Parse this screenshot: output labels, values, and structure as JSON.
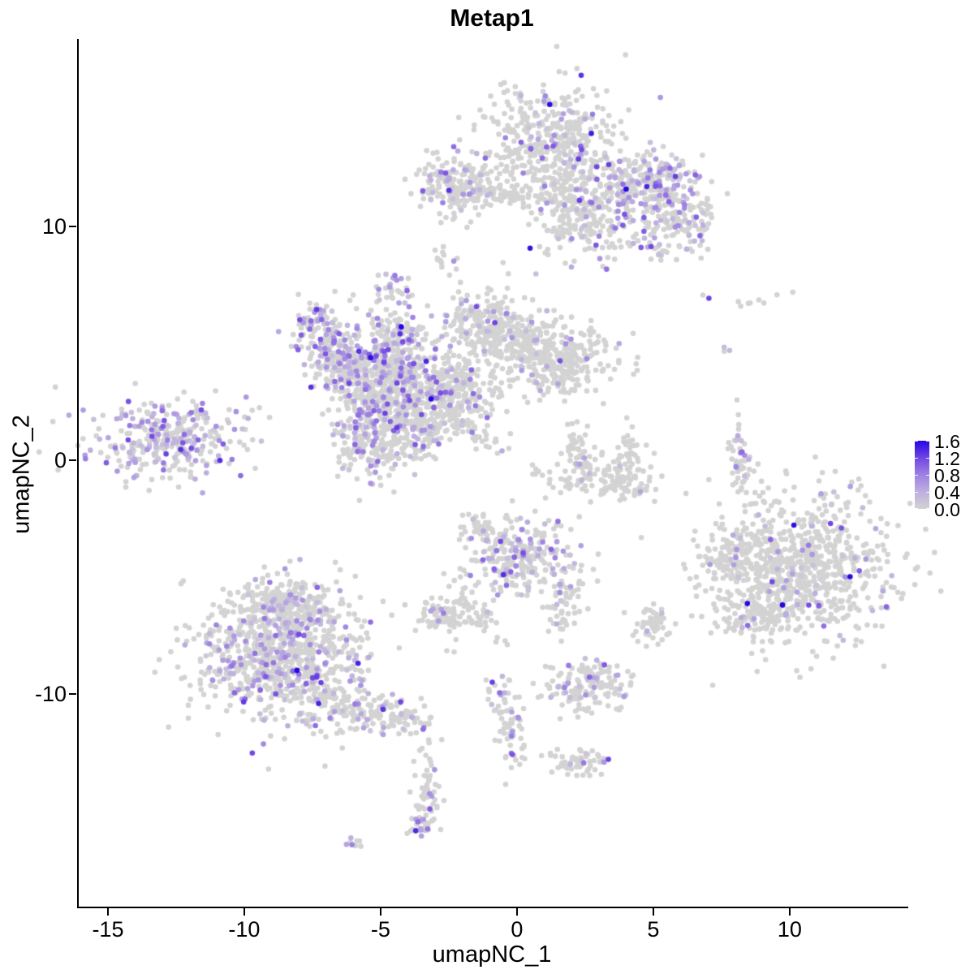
{
  "title": "Metap1",
  "x_axis": {
    "label": "umapNC_1",
    "ticks": [
      -15,
      -10,
      -5,
      0,
      5,
      10
    ],
    "range": [
      -16.13,
      14.29
    ]
  },
  "y_axis": {
    "label": "umapNC_2",
    "ticks": [
      10,
      0,
      -10
    ],
    "range": [
      -19.1,
      18.02
    ]
  },
  "legend": {
    "tick_labels": [
      "1.6",
      "1.2",
      "0.8",
      "0.4",
      "0.0"
    ],
    "tick_values": [
      1.6,
      1.2,
      0.8,
      0.4,
      0.0
    ],
    "min": 0.0,
    "max": 1.6
  },
  "colors": {
    "background": "#FFFFFF",
    "axis": "#000000",
    "point_zero": "#D3D3D3",
    "ramp_stops": [
      [
        0.0,
        "#D3D3D3"
      ],
      [
        0.25,
        "#BDAFDF"
      ],
      [
        0.5,
        "#9E82E2"
      ],
      [
        0.75,
        "#7146E3"
      ],
      [
        1.0,
        "#2606E3"
      ]
    ]
  },
  "chart_data": {
    "type": "scatter",
    "title": "Metap1",
    "xlabel": "umapNC_1",
    "ylabel": "umapNC_2",
    "xlim": [
      -16.13,
      14.29
    ],
    "ylim": [
      -19.1,
      18.02
    ],
    "grid": false,
    "legend_position": "right",
    "value_range": [
      0.0,
      1.6
    ],
    "point_radius_px": 3.3,
    "seed": 1337,
    "clusters": [
      {
        "name": "top-main-upper",
        "cx": 1.2,
        "cy": 13.7,
        "sx": 1.15,
        "sy": 1.25,
        "n": 430,
        "frac": 0.1,
        "intensity": 0.5,
        "angle": 0
      },
      {
        "name": "top-main-lower",
        "cx": 2.6,
        "cy": 10.6,
        "sx": 1.05,
        "sy": 1.0,
        "n": 280,
        "frac": 0.1,
        "intensity": 0.5,
        "angle": 0
      },
      {
        "name": "top-right-arm",
        "cx": 4.9,
        "cy": 11.8,
        "sx": 0.95,
        "sy": 0.75,
        "n": 230,
        "frac": 0.32,
        "intensity": 0.55,
        "angle": 0
      },
      {
        "name": "top-right-arm-tip",
        "cx": 5.8,
        "cy": 10.1,
        "sx": 0.8,
        "sy": 0.7,
        "n": 130,
        "frac": 0.22,
        "intensity": 0.5,
        "angle": 0
      },
      {
        "name": "top-bridge-strand",
        "cx": -0.6,
        "cy": 11.35,
        "sx": 1.3,
        "sy": 0.22,
        "n": 70,
        "frac": 0.04,
        "intensity": 0.4,
        "angle": 0
      },
      {
        "name": "top-left-blob",
        "cx": -2.3,
        "cy": 11.8,
        "sx": 0.8,
        "sy": 0.7,
        "n": 180,
        "frac": 0.14,
        "intensity": 0.5,
        "angle": 0
      },
      {
        "name": "top-left-tail",
        "cx": -2.65,
        "cy": 8.55,
        "sx": 0.18,
        "sy": 0.45,
        "n": 14,
        "frac": 0.07,
        "intensity": 0.4,
        "angle": 0
      },
      {
        "name": "small-purple-clump",
        "cx": -4.5,
        "cy": 7.45,
        "sx": 0.28,
        "sy": 0.33,
        "n": 26,
        "frac": 0.5,
        "intensity": 0.6,
        "angle": 0
      },
      {
        "name": "starfish-nw-arm",
        "cx": -7.15,
        "cy": 5.4,
        "sx": 0.55,
        "sy": 0.75,
        "n": 130,
        "frac": 0.35,
        "intensity": 0.55,
        "angle": 0
      },
      {
        "name": "starfish-w-arm",
        "cx": -6.3,
        "cy": 4.1,
        "sx": 0.6,
        "sy": 0.6,
        "n": 130,
        "frac": 0.28,
        "intensity": 0.5,
        "angle": 0
      },
      {
        "name": "starfish-core",
        "cx": -4.6,
        "cy": 3.6,
        "sx": 1.0,
        "sy": 0.95,
        "n": 460,
        "frac": 0.28,
        "intensity": 0.6,
        "angle": 0
      },
      {
        "name": "starfish-top-arm",
        "cx": -4.4,
        "cy": 5.5,
        "sx": 0.45,
        "sy": 0.7,
        "n": 90,
        "frac": 0.3,
        "intensity": 0.55,
        "angle": 0
      },
      {
        "name": "starfish-sw-arm",
        "cx": -5.6,
        "cy": 1.2,
        "sx": 0.65,
        "sy": 1.0,
        "n": 230,
        "frac": 0.24,
        "intensity": 0.5,
        "angle": 0
      },
      {
        "name": "starfish-s-lobe",
        "cx": -3.9,
        "cy": 1.4,
        "sx": 0.7,
        "sy": 0.8,
        "n": 200,
        "frac": 0.18,
        "intensity": 0.5,
        "angle": 0
      },
      {
        "name": "starfish-e-lobe",
        "cx": -2.3,
        "cy": 2.9,
        "sx": 0.8,
        "sy": 0.75,
        "n": 250,
        "frac": 0.13,
        "intensity": 0.5,
        "angle": 0
      },
      {
        "name": "starfish-se-strand",
        "cx": -1.9,
        "cy": 1.5,
        "sx": 0.75,
        "sy": 0.22,
        "n": 60,
        "frac": 0.08,
        "intensity": 0.45,
        "angle": -38
      },
      {
        "name": "starfish-ne-arm",
        "cx": -1.2,
        "cy": 5.8,
        "sx": 0.8,
        "sy": 0.75,
        "n": 210,
        "frac": 0.1,
        "intensity": 0.5,
        "angle": 0
      },
      {
        "name": "starfish-ne-neck",
        "cx": 0.2,
        "cy": 5.1,
        "sx": 0.7,
        "sy": 0.5,
        "n": 130,
        "frac": 0.07,
        "intensity": 0.45,
        "angle": 0
      },
      {
        "name": "east-blob",
        "cx": 1.5,
        "cy": 4.2,
        "sx": 1.05,
        "sy": 0.8,
        "n": 290,
        "frac": 0.05,
        "intensity": 0.45,
        "angle": 0
      },
      {
        "name": "far-left-cluster",
        "cx": -13.0,
        "cy": 0.9,
        "sx": 1.5,
        "sy": 0.85,
        "n": 330,
        "frac": 0.38,
        "intensity": 0.5,
        "angle": 8
      },
      {
        "name": "crescent-bottom",
        "cx": 3.0,
        "cy": -0.8,
        "sx": 1.1,
        "sy": 0.4,
        "n": 110,
        "frac": 0.02,
        "intensity": 0.4,
        "angle": -12
      },
      {
        "name": "crescent-right",
        "cx": 4.1,
        "cy": 0.1,
        "sx": 0.35,
        "sy": 0.65,
        "n": 55,
        "frac": 0.02,
        "intensity": 0.4,
        "angle": 0
      },
      {
        "name": "crescent-left-tip",
        "cx": 2.3,
        "cy": 0.3,
        "sx": 0.4,
        "sy": 0.5,
        "n": 45,
        "frac": 0.03,
        "intensity": 0.4,
        "angle": 0
      },
      {
        "name": "right-strip",
        "cx": 8.2,
        "cy": -0.1,
        "sx": 0.22,
        "sy": 0.95,
        "n": 55,
        "frac": 0.12,
        "intensity": 0.5,
        "angle": 8
      },
      {
        "name": "right-big-cluster",
        "cx": 10.3,
        "cy": -4.7,
        "sx": 1.65,
        "sy": 1.5,
        "n": 820,
        "frac": 0.055,
        "intensity": 0.55,
        "angle": 0
      },
      {
        "name": "right-big-appendage",
        "cx": 7.9,
        "cy": -4.3,
        "sx": 0.5,
        "sy": 0.55,
        "n": 70,
        "frac": 0.13,
        "intensity": 0.5,
        "angle": 0
      },
      {
        "name": "right-big-tail",
        "cx": 8.7,
        "cy": -6.7,
        "sx": 0.6,
        "sy": 0.5,
        "n": 90,
        "frac": 0.07,
        "intensity": 0.5,
        "angle": 0
      },
      {
        "name": "bottom-left-main",
        "cx": -8.6,
        "cy": -8.4,
        "sx": 1.55,
        "sy": 1.45,
        "n": 880,
        "frac": 0.2,
        "intensity": 0.5,
        "angle": 0
      },
      {
        "name": "bottom-left-top-lobe",
        "cx": -8.4,
        "cy": -6.3,
        "sx": 0.9,
        "sy": 0.6,
        "n": 180,
        "frac": 0.14,
        "intensity": 0.5,
        "angle": 0
      },
      {
        "name": "bottom-left-tail",
        "cx": -5.3,
        "cy": -10.8,
        "sx": 1.3,
        "sy": 0.4,
        "n": 170,
        "frac": 0.16,
        "intensity": 0.5,
        "angle": -17
      },
      {
        "name": "center-bottom-cluster",
        "cx": 0.1,
        "cy": -4.1,
        "sx": 1.0,
        "sy": 0.85,
        "n": 270,
        "frac": 0.26,
        "intensity": 0.55,
        "angle": 0
      },
      {
        "name": "center-bottom-left-tail",
        "cx": -1.5,
        "cy": -6.4,
        "sx": 0.3,
        "sy": 0.8,
        "n": 45,
        "frac": 0.04,
        "intensity": 0.4,
        "angle": 25
      },
      {
        "name": "center-bottom-right-tail",
        "cx": 1.7,
        "cy": -6.3,
        "sx": 0.35,
        "sy": 0.8,
        "n": 55,
        "frac": 0.1,
        "intensity": 0.45,
        "angle": -20
      },
      {
        "name": "center-upper-strand",
        "cx": -1.3,
        "cy": -2.9,
        "sx": 0.5,
        "sy": 0.18,
        "n": 35,
        "frac": 0.06,
        "intensity": 0.4,
        "angle": -40
      },
      {
        "name": "small-blob-right",
        "cx": 5.0,
        "cy": -7.0,
        "sx": 0.38,
        "sy": 0.45,
        "n": 50,
        "frac": 0.08,
        "intensity": 0.5,
        "angle": 0
      },
      {
        "name": "small-blob-left",
        "cx": -2.7,
        "cy": -6.7,
        "sx": 0.5,
        "sy": 0.42,
        "n": 75,
        "frac": 0.16,
        "intensity": 0.5,
        "angle": 0
      },
      {
        "name": "lower-mid-cluster",
        "cx": 2.6,
        "cy": -9.7,
        "sx": 0.85,
        "sy": 0.6,
        "n": 150,
        "frac": 0.18,
        "intensity": 0.5,
        "angle": 0
      },
      {
        "name": "lower-strand",
        "cx": -0.35,
        "cy": -11.3,
        "sx": 0.28,
        "sy": 1.0,
        "n": 75,
        "frac": 0.16,
        "intensity": 0.5,
        "angle": 10
      },
      {
        "name": "lower-small-blob",
        "cx": 2.3,
        "cy": -13.0,
        "sx": 0.55,
        "sy": 0.33,
        "n": 55,
        "frac": 0.07,
        "intensity": 0.45,
        "angle": 0
      },
      {
        "name": "bottom-strand",
        "cx": -3.3,
        "cy": -14.3,
        "sx": 0.25,
        "sy": 0.85,
        "n": 55,
        "frac": 0.1,
        "intensity": 0.5,
        "angle": 0
      },
      {
        "name": "bottom-strand-foot",
        "cx": -3.5,
        "cy": -15.6,
        "sx": 0.22,
        "sy": 0.2,
        "n": 22,
        "frac": 0.35,
        "intensity": 0.55,
        "angle": 0
      },
      {
        "name": "tiny-pair-bottom",
        "cx": -5.95,
        "cy": -16.4,
        "sx": 0.18,
        "sy": 0.12,
        "n": 7,
        "frac": 0.3,
        "intensity": 0.5,
        "angle": 0
      },
      {
        "name": "sparse-top-right",
        "cx": 8.7,
        "cy": 6.85,
        "sx": 1.3,
        "sy": 0.22,
        "n": 9,
        "frac": 0.0,
        "intensity": 0.4,
        "angle": 0
      },
      {
        "name": "pair-mid-right",
        "cx": 7.6,
        "cy": 4.75,
        "sx": 0.15,
        "sy": 0.18,
        "n": 3,
        "frac": 0.34,
        "intensity": 0.55,
        "angle": 0
      },
      {
        "name": "single-dot-right",
        "cx": 6.95,
        "cy": 6.9,
        "sx": 0.05,
        "sy": 0.05,
        "n": 1,
        "frac": 1.0,
        "intensity": 0.6,
        "angle": 0
      }
    ],
    "highlights": [
      {
        "x": -3.15,
        "y": 2.62,
        "v": 1.6
      },
      {
        "x": -3.5,
        "y": 1.95,
        "v": 1.15
      },
      {
        "x": -3.05,
        "y": 2.25,
        "v": 1.0
      },
      {
        "x": 0.15,
        "y": 13.6,
        "v": 1.0
      },
      {
        "x": 4.55,
        "y": 9.1,
        "v": 1.05
      },
      {
        "x": 2.9,
        "y": 9.2,
        "v": 1.1
      },
      {
        "x": -0.5,
        "y": -4.9,
        "v": 1.35
      },
      {
        "x": 10.7,
        "y": -6.2,
        "v": 1.15
      },
      {
        "x": 11.9,
        "y": -2.9,
        "v": 1.1
      },
      {
        "x": 9.3,
        "y": -3.4,
        "v": 1.0
      },
      {
        "x": -4.4,
        "y": 3.3,
        "v": 1.2
      },
      {
        "x": -4.75,
        "y": 2.4,
        "v": 1.1
      },
      {
        "x": 8.25,
        "y": 0.35,
        "v": 0.95
      },
      {
        "x": 2.45,
        "y": -12.95,
        "v": 0.85
      },
      {
        "x": -6.05,
        "y": -16.45,
        "v": 0.8
      },
      {
        "x": -13.4,
        "y": 1.3,
        "v": 0.9
      },
      {
        "x": -12.2,
        "y": 1.1,
        "v": 0.95
      }
    ]
  }
}
